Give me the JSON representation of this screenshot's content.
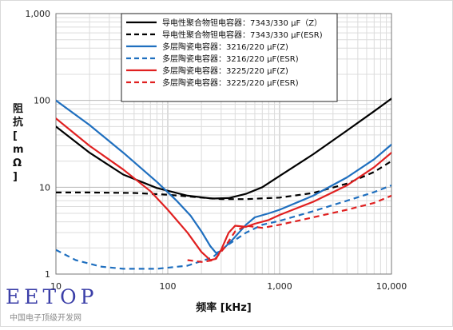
{
  "chart_data": {
    "type": "line",
    "title": "",
    "xlabel": "频率 [kHz]",
    "ylabel": "阻抗 [mΩ]",
    "xscale": "log",
    "yscale": "log",
    "xlim": [
      10,
      10000
    ],
    "ylim": [
      1,
      1000
    ],
    "x_ticks": [
      "10",
      "100",
      "1,000",
      "10,000"
    ],
    "y_ticks": [
      "1",
      "10",
      "100",
      "1,000"
    ],
    "grid": true,
    "legend_position": "top-right",
    "series": [
      {
        "name": "导电性聚合物钽电容器：7343/330 μF（Z）",
        "color": "#000000",
        "dash": "solid",
        "points": [
          [
            10,
            50
          ],
          [
            20,
            25
          ],
          [
            40,
            14
          ],
          [
            80,
            9.8
          ],
          [
            150,
            8
          ],
          [
            250,
            7.4
          ],
          [
            350,
            7.5
          ],
          [
            500,
            8.4
          ],
          [
            700,
            10
          ],
          [
            1000,
            13.5
          ],
          [
            2000,
            24
          ],
          [
            4000,
            45
          ],
          [
            7000,
            75
          ],
          [
            10000,
            105
          ]
        ]
      },
      {
        "name": "导电性聚合物钽电容器：7343/330 μF(ESR)",
        "color": "#000000",
        "dash": "dashed",
        "points": [
          [
            10,
            8.7
          ],
          [
            20,
            8.7
          ],
          [
            50,
            8.6
          ],
          [
            100,
            8.2
          ],
          [
            200,
            7.6
          ],
          [
            300,
            7.3
          ],
          [
            500,
            7.3
          ],
          [
            1000,
            7.6
          ],
          [
            2000,
            8.6
          ],
          [
            4000,
            11
          ],
          [
            7000,
            15
          ],
          [
            10000,
            20
          ]
        ]
      },
      {
        "name": "多层陶瓷电容器：3216/220 μF(Z)",
        "color": "#1f6fbf",
        "dash": "solid",
        "points": [
          [
            10,
            100
          ],
          [
            20,
            52
          ],
          [
            40,
            25
          ],
          [
            80,
            11.5
          ],
          [
            120,
            7
          ],
          [
            160,
            4.7
          ],
          [
            200,
            3.1
          ],
          [
            240,
            2.1
          ],
          [
            270,
            1.75
          ],
          [
            300,
            1.85
          ],
          [
            380,
            2.5
          ],
          [
            500,
            3.7
          ],
          [
            600,
            4.5
          ],
          [
            800,
            5
          ],
          [
            1000,
            5.5
          ],
          [
            2000,
            8
          ],
          [
            4000,
            13
          ],
          [
            7000,
            21
          ],
          [
            10000,
            31
          ]
        ]
      },
      {
        "name": "多层陶瓷电容器：3216/220 μF(ESR)",
        "color": "#1f6fbf",
        "dash": "dashed",
        "points": [
          [
            10,
            1.9
          ],
          [
            15,
            1.45
          ],
          [
            25,
            1.22
          ],
          [
            40,
            1.15
          ],
          [
            80,
            1.15
          ],
          [
            150,
            1.25
          ],
          [
            250,
            1.55
          ],
          [
            350,
            2.2
          ],
          [
            500,
            3
          ],
          [
            700,
            3.7
          ],
          [
            1000,
            4.1
          ],
          [
            2000,
            5.3
          ],
          [
            4000,
            7
          ],
          [
            7000,
            8.8
          ],
          [
            10000,
            10.5
          ]
        ]
      },
      {
        "name": "多层陶瓷电容器：3225/220 μF(Z)",
        "color": "#e02020",
        "dash": "solid",
        "points": [
          [
            10,
            62
          ],
          [
            20,
            30
          ],
          [
            40,
            16
          ],
          [
            70,
            9
          ],
          [
            100,
            5.5
          ],
          [
            150,
            3
          ],
          [
            200,
            1.8
          ],
          [
            240,
            1.45
          ],
          [
            270,
            1.5
          ],
          [
            300,
            1.9
          ],
          [
            350,
            3
          ],
          [
            400,
            3.6
          ],
          [
            500,
            3.5
          ],
          [
            600,
            3.8
          ],
          [
            800,
            4.2
          ],
          [
            1000,
            4.8
          ],
          [
            2000,
            6.8
          ],
          [
            4000,
            10.5
          ],
          [
            7000,
            17
          ],
          [
            10000,
            25
          ]
        ]
      },
      {
        "name": "多层陶瓷电容器：3225/220 μF(ESR)",
        "color": "#e02020",
        "dash": "dashed",
        "points": [
          [
            150,
            1.45
          ],
          [
            200,
            1.38
          ],
          [
            260,
            1.45
          ],
          [
            320,
            2
          ],
          [
            400,
            3.1
          ],
          [
            500,
            3.6
          ],
          [
            700,
            3.4
          ],
          [
            1000,
            3.7
          ],
          [
            2000,
            4.5
          ],
          [
            4000,
            5.5
          ],
          [
            7000,
            6.6
          ],
          [
            10000,
            8
          ]
        ]
      }
    ]
  },
  "watermark": {
    "main": "EETOP",
    "sub": "中国电子顶级开发网"
  }
}
